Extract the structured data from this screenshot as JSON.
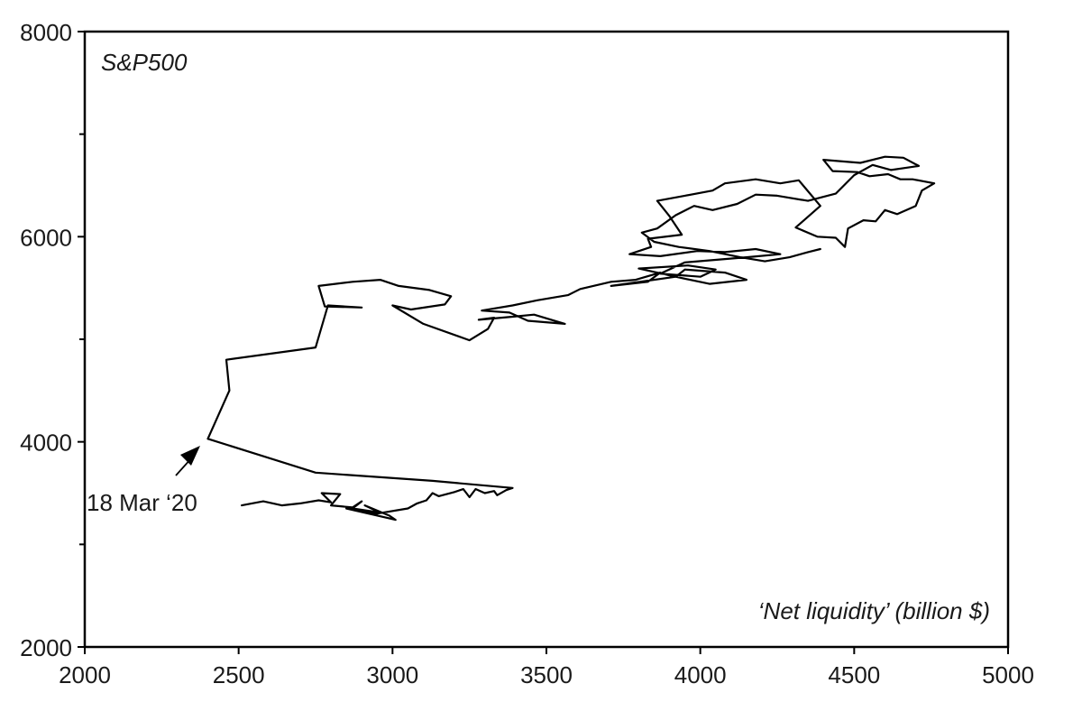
{
  "chart_data": {
    "type": "line",
    "title": "",
    "series_label": "S&P500",
    "xlabel": "‘Net liquidity’ (billion $)",
    "ylabel": "",
    "xlim": [
      2000,
      5000
    ],
    "ylim": [
      2000,
      8000
    ],
    "x_ticks": [
      2000,
      2500,
      3000,
      3500,
      4000,
      4500,
      5000
    ],
    "y_ticks": [
      2000,
      4000,
      6000,
      8000
    ],
    "x_tick_labels": [
      "2000",
      "2500",
      "3000",
      "3500",
      "4000",
      "4500",
      "5000"
    ],
    "y_tick_labels": [
      "2000",
      "4000",
      "6000",
      "8000"
    ],
    "grid": false,
    "color": "#000000",
    "annotation": {
      "text": "18 Mar ‘20",
      "x": 2400,
      "y": 4030
    },
    "points": [
      [
        2510,
        3380
      ],
      [
        2580,
        3420
      ],
      [
        2640,
        3380
      ],
      [
        2700,
        3400
      ],
      [
        2760,
        3430
      ],
      [
        2800,
        3410
      ],
      [
        2770,
        3500
      ],
      [
        2830,
        3490
      ],
      [
        2800,
        3380
      ],
      [
        2870,
        3360
      ],
      [
        2900,
        3420
      ],
      [
        2870,
        3350
      ],
      [
        2960,
        3310
      ],
      [
        2910,
        3380
      ],
      [
        2990,
        3280
      ],
      [
        3010,
        3240
      ],
      [
        2850,
        3350
      ],
      [
        2950,
        3300
      ],
      [
        3050,
        3350
      ],
      [
        3080,
        3400
      ],
      [
        3110,
        3430
      ],
      [
        3130,
        3500
      ],
      [
        3150,
        3470
      ],
      [
        3200,
        3510
      ],
      [
        3230,
        3540
      ],
      [
        3250,
        3460
      ],
      [
        3270,
        3540
      ],
      [
        3300,
        3500
      ],
      [
        3330,
        3520
      ],
      [
        3340,
        3480
      ],
      [
        3370,
        3530
      ],
      [
        3390,
        3550
      ],
      [
        3130,
        3620
      ],
      [
        2750,
        3700
      ],
      [
        2400,
        4030
      ],
      [
        2470,
        4500
      ],
      [
        2460,
        4800
      ],
      [
        2750,
        4920
      ],
      [
        2790,
        5330
      ],
      [
        2900,
        5310
      ],
      [
        2780,
        5320
      ],
      [
        2760,
        5520
      ],
      [
        2870,
        5560
      ],
      [
        2960,
        5580
      ],
      [
        3020,
        5520
      ],
      [
        3120,
        5480
      ],
      [
        3190,
        5420
      ],
      [
        3170,
        5340
      ],
      [
        3060,
        5290
      ],
      [
        3000,
        5330
      ],
      [
        3100,
        5150
      ],
      [
        3250,
        4990
      ],
      [
        3310,
        5100
      ],
      [
        3330,
        5210
      ],
      [
        3280,
        5190
      ],
      [
        3390,
        5220
      ],
      [
        3460,
        5240
      ],
      [
        3560,
        5150
      ],
      [
        3440,
        5180
      ],
      [
        3380,
        5260
      ],
      [
        3290,
        5280
      ],
      [
        3390,
        5330
      ],
      [
        3470,
        5380
      ],
      [
        3570,
        5430
      ],
      [
        3610,
        5490
      ],
      [
        3710,
        5560
      ],
      [
        3790,
        5580
      ],
      [
        3870,
        5650
      ],
      [
        3830,
        5560
      ],
      [
        3710,
        5520
      ],
      [
        3920,
        5610
      ],
      [
        3950,
        5680
      ],
      [
        4080,
        5650
      ],
      [
        4150,
        5580
      ],
      [
        4030,
        5540
      ],
      [
        3920,
        5610
      ],
      [
        3800,
        5690
      ],
      [
        3960,
        5720
      ],
      [
        4050,
        5680
      ],
      [
        4000,
        5610
      ],
      [
        3870,
        5640
      ],
      [
        3950,
        5750
      ],
      [
        4150,
        5800
      ],
      [
        4260,
        5830
      ],
      [
        4180,
        5880
      ],
      [
        4080,
        5850
      ],
      [
        3990,
        5860
      ],
      [
        3870,
        5810
      ],
      [
        3770,
        5830
      ],
      [
        3840,
        5900
      ],
      [
        3830,
        5980
      ],
      [
        3940,
        6020
      ],
      [
        3900,
        6200
      ],
      [
        3860,
        6350
      ],
      [
        3950,
        6400
      ],
      [
        4040,
        6450
      ],
      [
        4080,
        6520
      ],
      [
        4180,
        6560
      ],
      [
        4260,
        6520
      ],
      [
        4320,
        6550
      ],
      [
        4390,
        6300
      ],
      [
        4310,
        6090
      ],
      [
        4380,
        6000
      ],
      [
        4440,
        5990
      ],
      [
        4470,
        5900
      ],
      [
        4480,
        6080
      ],
      [
        4530,
        6160
      ],
      [
        4570,
        6150
      ],
      [
        4600,
        6260
      ],
      [
        4640,
        6220
      ],
      [
        4700,
        6300
      ],
      [
        4720,
        6450
      ],
      [
        4760,
        6520
      ],
      [
        4690,
        6560
      ],
      [
        4650,
        6560
      ],
      [
        4610,
        6610
      ],
      [
        4550,
        6590
      ],
      [
        4510,
        6630
      ],
      [
        4430,
        6640
      ],
      [
        4400,
        6750
      ],
      [
        4520,
        6720
      ],
      [
        4600,
        6780
      ],
      [
        4660,
        6770
      ],
      [
        4710,
        6690
      ],
      [
        4620,
        6650
      ],
      [
        4560,
        6700
      ],
      [
        4500,
        6600
      ],
      [
        4440,
        6420
      ],
      [
        4350,
        6350
      ],
      [
        4250,
        6400
      ],
      [
        4180,
        6410
      ],
      [
        4120,
        6320
      ],
      [
        4040,
        6260
      ],
      [
        3980,
        6300
      ],
      [
        3920,
        6210
      ],
      [
        3860,
        6080
      ],
      [
        3810,
        6040
      ],
      [
        3850,
        5950
      ],
      [
        3930,
        5900
      ],
      [
        4030,
        5860
      ],
      [
        4130,
        5800
      ],
      [
        4210,
        5760
      ],
      [
        4290,
        5800
      ],
      [
        4350,
        5850
      ],
      [
        4390,
        5880
      ]
    ]
  }
}
